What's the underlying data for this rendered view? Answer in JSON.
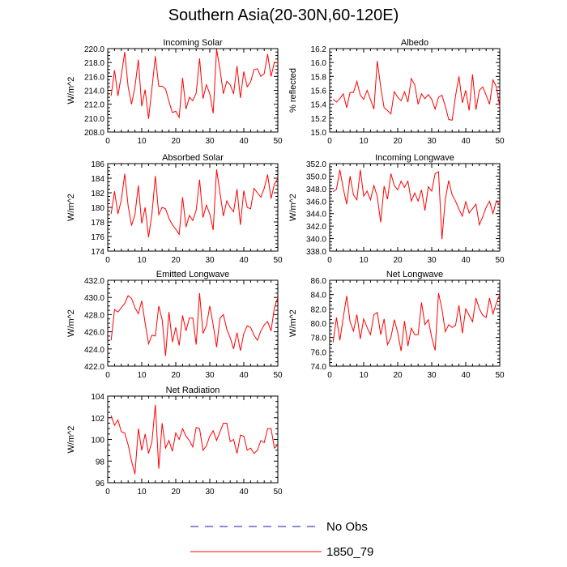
{
  "title": "Southern Asia(20-30N,60-120E)",
  "colors": {
    "model_line": "#ff0000",
    "obs_line": "#1a1aa8",
    "axis": "#000000"
  },
  "legend": {
    "obs_label": "No Obs",
    "model_label": "1850_79",
    "placement": "bottom-center"
  },
  "chart_data": [
    {
      "type": "line",
      "title": "Incoming Solar",
      "ylabel": "W/m^2",
      "xlabel": "",
      "xlim": [
        0,
        50
      ],
      "ylim": [
        208,
        220
      ],
      "xticks": [
        0,
        10,
        20,
        30,
        40,
        50
      ],
      "yticks": [
        208,
        210,
        212,
        214,
        216,
        218,
        220
      ],
      "ytick_labels": [
        "208.0",
        "210.0",
        "212.0",
        "214.0",
        "216.0",
        "218.0",
        "220.0"
      ],
      "series": [
        {
          "name": "1850_79",
          "values": [
            213.2,
            216.9,
            213.2,
            216.2,
            219.5,
            214.5,
            212.0,
            214.5,
            218.4,
            211.7,
            214.1,
            209.9,
            214.3,
            218.9,
            214.6,
            214.6,
            214.2,
            212.4,
            210.8,
            211.0,
            210.1,
            215.8,
            211.3,
            213.0,
            212.5,
            213.6,
            218.6,
            212.8,
            214.8,
            213.5,
            210.7,
            219.9,
            217.0,
            213.5,
            215.3,
            214.8,
            213.5,
            217.5,
            212.9,
            216.7,
            214.5,
            215.2,
            217.0,
            217.1,
            216.0,
            216.4,
            219.2,
            216.0,
            218.0,
            218.0
          ]
        }
      ]
    },
    {
      "type": "line",
      "title": "Albedo",
      "ylabel": "% reflected",
      "xlabel": "",
      "xlim": [
        0,
        50
      ],
      "ylim": [
        15.0,
        16.2
      ],
      "xticks": [
        0,
        10,
        20,
        30,
        40,
        50
      ],
      "yticks": [
        15.0,
        15.2,
        15.4,
        15.6,
        15.8,
        16.0,
        16.2
      ],
      "ytick_labels": [
        "15.0",
        "15.2",
        "15.4",
        "15.6",
        "15.8",
        "16.0",
        "16.2"
      ],
      "series": [
        {
          "name": "1850_79",
          "values": [
            15.47,
            15.43,
            15.48,
            15.55,
            15.35,
            15.57,
            15.57,
            15.73,
            15.53,
            15.47,
            15.6,
            15.47,
            15.33,
            16.02,
            15.65,
            15.35,
            15.31,
            15.26,
            15.58,
            15.5,
            15.45,
            15.58,
            15.43,
            15.77,
            15.68,
            15.4,
            15.55,
            15.48,
            15.54,
            15.47,
            15.33,
            15.5,
            15.53,
            15.37,
            15.18,
            15.17,
            15.52,
            15.8,
            15.42,
            15.6,
            15.31,
            15.83,
            15.32,
            15.6,
            15.65,
            15.53,
            15.4,
            15.75,
            15.65,
            15.36
          ]
        }
      ]
    },
    {
      "type": "line",
      "title": "Absorbed Solar",
      "ylabel": "W/m^2",
      "xlabel": "",
      "xlim": [
        0,
        50
      ],
      "ylim": [
        174,
        186
      ],
      "xticks": [
        0,
        10,
        20,
        30,
        40,
        50
      ],
      "yticks": [
        174,
        176,
        178,
        180,
        182,
        184,
        186
      ],
      "ytick_labels": [
        "174",
        "176",
        "178",
        "180",
        "182",
        "184",
        "186"
      ],
      "series": [
        {
          "name": "1850_79",
          "values": [
            179.1,
            182.2,
            179.1,
            181.0,
            184.6,
            180.2,
            177.5,
            179.0,
            183.0,
            177.8,
            180.0,
            175.9,
            179.1,
            184.3,
            179.0,
            180.0,
            179.8,
            178.5,
            177.6,
            177.0,
            176.3,
            181.4,
            177.3,
            178.9,
            178.2,
            179.6,
            183.8,
            178.6,
            180.3,
            179.1,
            176.9,
            185.2,
            182.0,
            178.8,
            180.9,
            180.0,
            179.4,
            182.5,
            177.6,
            182.3,
            180.0,
            179.8,
            182.6,
            182.0,
            181.4,
            182.6,
            184.5,
            181.2,
            183.2,
            184.0
          ]
        }
      ]
    },
    {
      "type": "line",
      "title": "Incoming Longwave",
      "ylabel": "W/m^2",
      "xlabel": "",
      "xlim": [
        0,
        50
      ],
      "ylim": [
        338,
        352
      ],
      "xticks": [
        0,
        10,
        20,
        30,
        40,
        50
      ],
      "yticks": [
        338,
        340,
        342,
        344,
        346,
        348,
        350,
        352
      ],
      "ytick_labels": [
        "338.0",
        "340.0",
        "342.0",
        "344.0",
        "346.0",
        "348.0",
        "350.0",
        "352.0"
      ],
      "series": [
        {
          "name": "1850_79",
          "values": [
            347.5,
            347.9,
            351.0,
            348.0,
            345.5,
            350.0,
            347.0,
            346.2,
            351.0,
            346.8,
            347.6,
            346.2,
            348.5,
            346.7,
            342.6,
            348.4,
            346.3,
            350.4,
            348.5,
            347.8,
            349.2,
            348.2,
            349.2,
            346.0,
            347.3,
            346.0,
            347.8,
            344.5,
            348.3,
            347.6,
            350.4,
            350.7,
            339.9,
            346.3,
            349.3,
            347.0,
            346.0,
            344.7,
            343.6,
            345.9,
            344.1,
            344.8,
            345.5,
            342.2,
            343.5,
            345.0,
            346.0,
            344.0,
            346.0,
            345.5
          ]
        }
      ]
    },
    {
      "type": "line",
      "title": "Emitted Longwave",
      "ylabel": "W/m^2",
      "xlabel": "",
      "xlim": [
        0,
        50
      ],
      "ylim": [
        422,
        432
      ],
      "xticks": [
        0,
        10,
        20,
        30,
        40,
        50
      ],
      "yticks": [
        422,
        424,
        426,
        428,
        430,
        432
      ],
      "ytick_labels": [
        "422.0",
        "424.0",
        "426.0",
        "428.0",
        "430.0",
        "432.0"
      ],
      "series": [
        {
          "name": "1850_79",
          "values": [
            425.0,
            428.6,
            428.3,
            428.8,
            429.3,
            430.2,
            429.9,
            428.8,
            428.1,
            429.6,
            427.0,
            424.6,
            425.6,
            425.5,
            429.0,
            427.4,
            423.2,
            428.3,
            424.8,
            426.5,
            424.4,
            427.9,
            426.1,
            427.6,
            427.6,
            424.5,
            430.5,
            425.8,
            426.7,
            429.0,
            426.8,
            424.2,
            427.6,
            428.0,
            426.3,
            425.3,
            424.0,
            425.9,
            423.8,
            425.8,
            426.7,
            426.5,
            425.6,
            425.0,
            426.1,
            426.8,
            427.2,
            426.1,
            428.8,
            430.0
          ]
        }
      ]
    },
    {
      "type": "line",
      "title": "Net Longwave",
      "ylabel": "W/m^2",
      "xlabel": "",
      "xlim": [
        0,
        50
      ],
      "ylim": [
        74,
        86
      ],
      "xticks": [
        0,
        10,
        20,
        30,
        40,
        50
      ],
      "yticks": [
        74,
        76,
        78,
        80,
        82,
        84,
        86
      ],
      "ytick_labels": [
        "74.0",
        "76.0",
        "78.0",
        "80.0",
        "82.0",
        "84.0",
        "86.0"
      ],
      "series": [
        {
          "name": "1850_79",
          "values": [
            77.3,
            80.8,
            77.6,
            80.8,
            83.8,
            80.2,
            78.9,
            81.2,
            77.8,
            80.6,
            79.4,
            78.4,
            81.2,
            81.5,
            78.4,
            80.6,
            77.0,
            78.0,
            80.5,
            78.7,
            76.1,
            80.3,
            76.8,
            79.3,
            78.4,
            78.4,
            82.9,
            79.8,
            80.5,
            78.0,
            76.2,
            84.2,
            82.0,
            78.8,
            79.8,
            79.4,
            79.7,
            82.5,
            78.6,
            82.0,
            81.1,
            80.2,
            83.5,
            82.0,
            81.1,
            80.8,
            83.5,
            81.3,
            82.8,
            84.0
          ]
        }
      ]
    },
    {
      "type": "line",
      "title": "Net Radiation",
      "ylabel": "W/m^2",
      "xlabel": "",
      "xlim": [
        0,
        50
      ],
      "ylim": [
        96,
        104
      ],
      "xticks": [
        0,
        10,
        20,
        30,
        40,
        50
      ],
      "yticks": [
        96,
        98,
        100,
        102,
        104
      ],
      "ytick_labels": [
        "96",
        "98",
        "100",
        "102",
        "104"
      ],
      "series": [
        {
          "name": "1850_79",
          "values": [
            102.2,
            101.3,
            101.8,
            100.7,
            100.6,
            99.5,
            98.0,
            96.8,
            101.0,
            99.0,
            100.5,
            98.7,
            99.8,
            103.2,
            97.3,
            101.5,
            99.2,
            99.9,
            98.9,
            100.6,
            100.0,
            101.0,
            100.3,
            99.9,
            99.3,
            101.1,
            101.0,
            99.0,
            99.4,
            100.3,
            100.8,
            99.9,
            100.7,
            101.5,
            101.5,
            99.8,
            100.0,
            98.7,
            100.4,
            100.3,
            99.0,
            99.2,
            98.7,
            99.0,
            99.9,
            99.7,
            101.0,
            101.0,
            99.2,
            99.5
          ]
        }
      ]
    }
  ]
}
